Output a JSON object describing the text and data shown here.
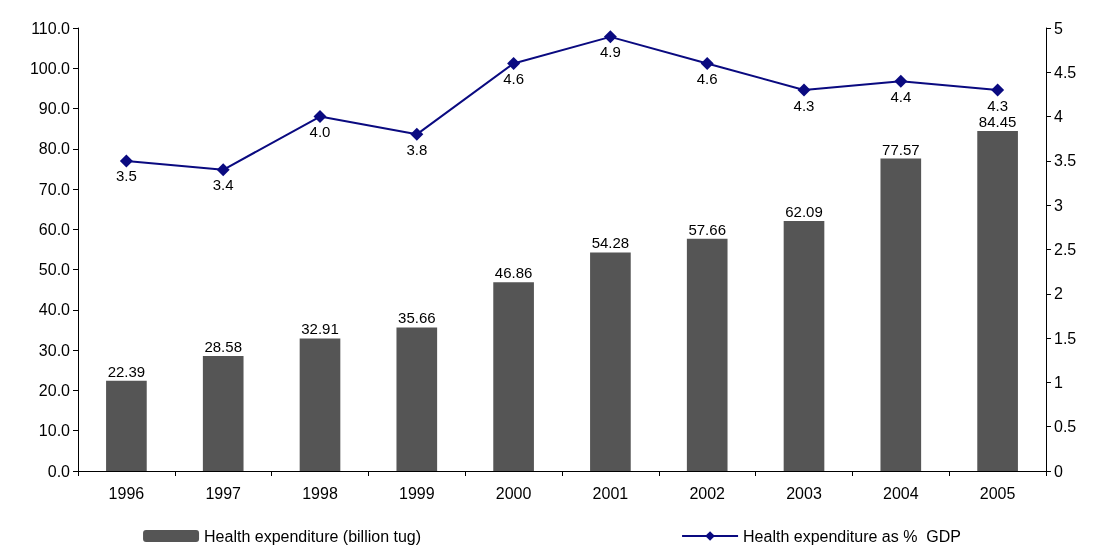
{
  "chart_data": {
    "type": "bar",
    "categories": [
      "1996",
      "1997",
      "1998",
      "1999",
      "2000",
      "2001",
      "2002",
      "2003",
      "2004",
      "2005"
    ],
    "series": [
      {
        "name": "Health expenditure (billion tug)",
        "color": "#555555",
        "values": [
          22.39,
          28.58,
          32.91,
          35.66,
          46.86,
          54.28,
          57.66,
          62.09,
          77.57,
          84.45
        ],
        "value_labels": [
          "22.39",
          "28.58",
          "32.91",
          "35.66",
          "46.86",
          "54.28",
          "57.66",
          "62.09",
          "77.57",
          "84.45"
        ]
      },
      {
        "name": "Health expenditure as %  GDP",
        "type": "line",
        "axis": "y2",
        "color": "#0a0a80",
        "values": [
          3.5,
          3.4,
          4.0,
          3.8,
          4.6,
          4.9,
          4.6,
          4.3,
          4.4,
          4.3
        ],
        "value_labels": [
          "3.5",
          "3.4",
          "4.0",
          "3.8",
          "4.6",
          "4.9",
          "4.6",
          "4.3",
          "4.4",
          "4.3"
        ]
      }
    ],
    "ylim": [
      0,
      110
    ],
    "yticks": [
      {
        "value": 0,
        "label": "0.0"
      },
      {
        "value": 10,
        "label": "10.0"
      },
      {
        "value": 20,
        "label": "20.0"
      },
      {
        "value": 30,
        "label": "30.0"
      },
      {
        "value": 40,
        "label": "40.0"
      },
      {
        "value": 50,
        "label": "50.0"
      },
      {
        "value": 60,
        "label": "60.0"
      },
      {
        "value": 70,
        "label": "70.0"
      },
      {
        "value": 80,
        "label": "80.0"
      },
      {
        "value": 90,
        "label": "90.0"
      },
      {
        "value": 100,
        "label": "100.0"
      },
      {
        "value": 110,
        "label": "110.0"
      }
    ],
    "y2lim": [
      0,
      5
    ],
    "y2ticks": [
      0,
      0.5,
      1,
      1.5,
      2,
      2.5,
      3,
      3.5,
      4,
      4.5,
      5
    ],
    "marker": "diamond",
    "line_style": "solid",
    "grid": false,
    "legend": "bottom"
  }
}
